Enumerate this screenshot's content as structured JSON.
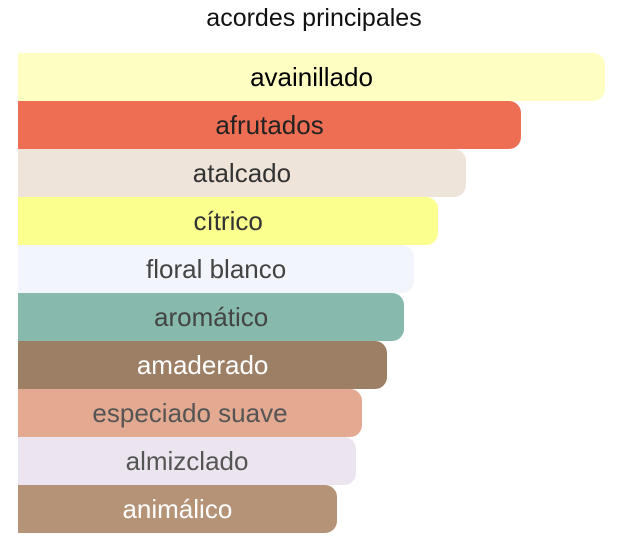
{
  "chart_data": {
    "type": "bar",
    "orientation": "horizontal",
    "title": "acordes principales",
    "categories": [
      "avainillado",
      "afrutados",
      "atalcado",
      "cítrico",
      "floral blanco",
      "aromático",
      "amaderado",
      "especiado suave",
      "almizclado",
      "animálico"
    ],
    "values": [
      100,
      85.7,
      76.3,
      71.6,
      67.5,
      65.8,
      62.9,
      58.6,
      57.6,
      54.3
    ],
    "value_unit": "percent of strongest accord",
    "colors": [
      "#FFFEC2",
      "#EE6E53",
      "#EFE4D9",
      "#FAFF8E",
      "#F2F5FC",
      "#87B9AC",
      "#9D7F65",
      "#E3A991",
      "#ECE5F0",
      "#B59377"
    ],
    "label_colors": [
      "#000000",
      "#222222",
      "#333333",
      "#333333",
      "#444444",
      "#444444",
      "#FFFFFF",
      "#555555",
      "#555555",
      "#FFFFFF"
    ],
    "grid": false,
    "legend": "none"
  }
}
